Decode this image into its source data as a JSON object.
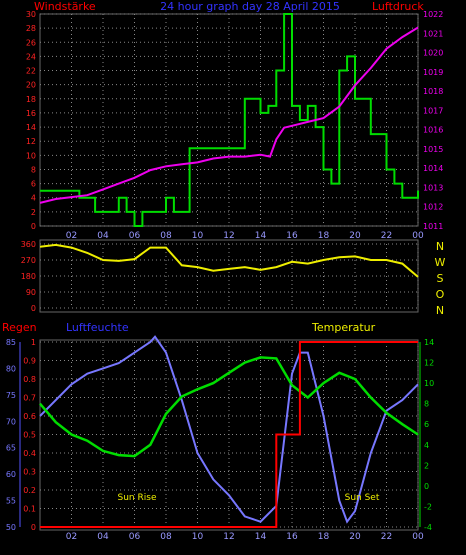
{
  "top": {
    "left_label": "Windstärke",
    "center_label": "24 hour graph day  28 April 2015",
    "right_label": "Luftdruck",
    "left_axis_ticks": [
      "0",
      "2",
      "4",
      "6",
      "8",
      "10",
      "12",
      "14",
      "16",
      "18",
      "20",
      "22",
      "24",
      "26",
      "28",
      "30"
    ],
    "right_axis_ticks": [
      "1011",
      "1012",
      "1013",
      "1014",
      "1015",
      "1016",
      "1017",
      "1018",
      "1019",
      "1020",
      "1021",
      "1022"
    ],
    "x_ticks": [
      "02",
      "04",
      "06",
      "08",
      "10",
      "12",
      "14",
      "16",
      "18",
      "20",
      "22",
      "00"
    ]
  },
  "mid": {
    "y_ticks": [
      "0",
      "90",
      "180",
      "270",
      "360"
    ],
    "compass": [
      "N",
      "W",
      "S",
      "O",
      "N"
    ]
  },
  "bottom": {
    "left_label": "Regen",
    "mid_label": "Luftfeuchte",
    "right_label": "Temperatur",
    "rain_ticks": [
      "0",
      "0.1",
      "0.2",
      "0.3",
      "0.4",
      "0.5",
      "0.6",
      "0.7",
      "0.8",
      "0.9",
      "1"
    ],
    "humidity_ticks": [
      "50",
      "55",
      "60",
      "65",
      "70",
      "75",
      "80",
      "85"
    ],
    "temp_ticks": [
      "-4",
      "-2",
      "0",
      "2",
      "4",
      "6",
      "8",
      "10",
      "12",
      "14"
    ],
    "x_ticks": [
      "02",
      "04",
      "06",
      "08",
      "10",
      "12",
      "14",
      "16",
      "18",
      "20",
      "22",
      "00"
    ],
    "sunrise": "Sun Rise",
    "sunset": "Sun Set"
  },
  "colors": {
    "wind": "#00dd00",
    "pressure": "#ee00ee",
    "direction": "#eeee00",
    "humidity": "#7777ff",
    "temperature": "#00dd00",
    "rain": "#ff0000",
    "title_red": "#ff0000",
    "title_blue": "#3333ff",
    "grid": "#888888"
  },
  "chart_data": [
    {
      "type": "line",
      "title": "24 hour graph day  28 April 2015",
      "series": [
        {
          "name": "Windstärke",
          "axis": "left",
          "step": true,
          "x": [
            0,
            2,
            2.5,
            3,
            3.5,
            5,
            5.5,
            6,
            6.5,
            7,
            8,
            8.5,
            9,
            9.5,
            12,
            13,
            14,
            14.5,
            15,
            15.5,
            16,
            16.5,
            17,
            17.5,
            18,
            18.5,
            19,
            19.5,
            20,
            21,
            22,
            22.5,
            23,
            23.5,
            24
          ],
          "y": [
            5,
            5,
            4,
            4,
            2,
            4,
            2,
            0,
            2,
            2,
            4,
            2,
            2,
            11,
            11,
            18,
            16,
            17,
            22,
            30,
            17,
            15,
            17,
            14,
            8,
            6,
            22,
            24,
            18,
            13,
            8,
            6,
            4,
            4,
            5
          ]
        },
        {
          "name": "Luftdruck",
          "axis": "right",
          "x": [
            0,
            1,
            2,
            3,
            4,
            5,
            6,
            7,
            8,
            9,
            10,
            11,
            12,
            13,
            14,
            14.6,
            15,
            15.5,
            16,
            17,
            18,
            19,
            20,
            21,
            22,
            23,
            24
          ],
          "y": [
            1012.2,
            1012.4,
            1012.5,
            1012.6,
            1012.9,
            1013.2,
            1013.5,
            1013.9,
            1014.1,
            1014.2,
            1014.3,
            1014.5,
            1014.6,
            1014.6,
            1014.7,
            1014.6,
            1015.5,
            1016.1,
            1016.2,
            1016.4,
            1016.6,
            1017.2,
            1018.3,
            1019.2,
            1020.2,
            1020.8,
            1021.3
          ]
        }
      ],
      "ylim": [
        0,
        30
      ],
      "ylim_right": [
        1011,
        1022
      ]
    },
    {
      "type": "line",
      "series": [
        {
          "name": "direction",
          "x": [
            0,
            1,
            2,
            3,
            4,
            5,
            6,
            7,
            8,
            9,
            10,
            11,
            12,
            13,
            14,
            15,
            16,
            17,
            18,
            19,
            20,
            21,
            22,
            23,
            24
          ],
          "y": [
            345,
            355,
            340,
            310,
            270,
            265,
            275,
            340,
            340,
            240,
            230,
            210,
            220,
            230,
            215,
            230,
            260,
            250,
            270,
            285,
            290,
            270,
            270,
            250,
            175
          ]
        }
      ],
      "ylim": [
        0,
        360
      ]
    },
    {
      "type": "line",
      "series": [
        {
          "name": "Luftfeuchte",
          "axis": "mid",
          "x": [
            0,
            1,
            2,
            3,
            4,
            5,
            6,
            7,
            7.3,
            8,
            9,
            10,
            11,
            12,
            13,
            14,
            15,
            16,
            16.5,
            17,
            18,
            19,
            19.5,
            20,
            21,
            22,
            23,
            24
          ],
          "y": [
            71,
            74,
            77,
            79,
            80,
            81,
            83,
            85,
            86,
            83,
            74,
            64,
            59,
            56,
            52,
            51,
            54,
            79,
            83,
            83,
            71,
            55,
            51,
            53,
            64,
            72,
            74,
            77
          ]
        },
        {
          "name": "Temperatur",
          "axis": "right",
          "x": [
            0,
            1,
            2,
            3,
            4,
            5,
            6,
            7,
            8,
            9,
            10,
            11,
            12,
            13,
            14,
            15,
            16,
            17,
            18,
            19,
            20,
            21,
            22,
            23,
            24
          ],
          "y": [
            8,
            6.2,
            5,
            4.4,
            3.4,
            3,
            2.9,
            4,
            7,
            8.7,
            9.4,
            10,
            11,
            12,
            12.5,
            12.4,
            9.8,
            8.6,
            10,
            11,
            10.4,
            8.6,
            7.1,
            6,
            5
          ]
        },
        {
          "name": "Regen",
          "axis": "left",
          "step": true,
          "x": [
            0,
            15,
            15,
            16.5,
            16.5,
            24
          ],
          "y": [
            0,
            0,
            0.5,
            0.5,
            1,
            1
          ]
        }
      ],
      "ylim_left": [
        0,
        1
      ],
      "ylim_mid": [
        50,
        85
      ],
      "ylim_right": [
        -4,
        14
      ],
      "annotations": [
        "Sun Rise",
        "Sun Set"
      ]
    }
  ]
}
